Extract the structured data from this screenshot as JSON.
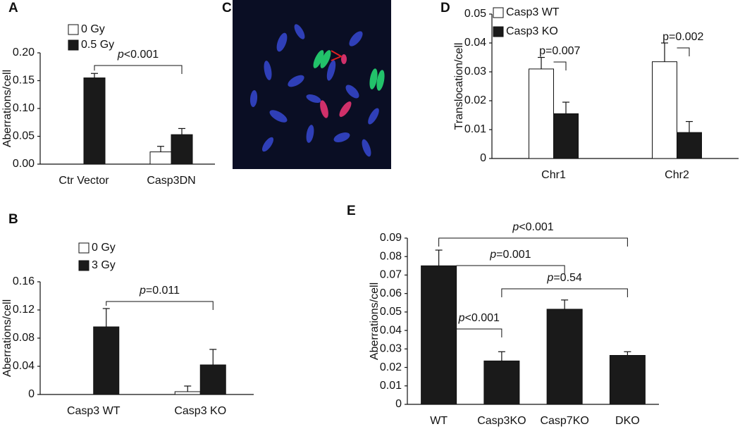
{
  "chart_data": [
    {
      "type": "bar",
      "label": "A",
      "ylabel": "Aberrations/cell",
      "categories": [
        "Ctr Vector",
        "Casp3DN"
      ],
      "series": [
        {
          "name": "0 Gy",
          "color": "#ffffff",
          "values": [
            null,
            0.022
          ],
          "errors": [
            null,
            0.01
          ]
        },
        {
          "name": "0.5 Gy",
          "color": "#1a1a1a",
          "values": [
            0.155,
            0.053
          ],
          "errors": [
            0.008,
            0.011
          ]
        }
      ],
      "ylim": [
        0,
        0.2
      ],
      "yticks": [
        {
          "value": 0,
          "label": "0.00"
        },
        {
          "value": 0.05,
          "label": "0.05"
        },
        {
          "value": 0.1,
          "label": "0.10"
        },
        {
          "value": 0.15,
          "label": "0.15"
        },
        {
          "value": 0.2,
          "label": "0.20"
        }
      ],
      "grid": false,
      "legend": "upper left",
      "annotations": [
        "p<0.001"
      ]
    },
    {
      "type": "bar",
      "label": "B",
      "ylabel": "Aberrations/cell",
      "categories": [
        "Casp3 WT",
        "Casp3 KO"
      ],
      "series": [
        {
          "name": "0 Gy",
          "color": "#ffffff",
          "values": [
            null,
            0.004
          ],
          "errors": [
            null,
            0.008
          ]
        },
        {
          "name": "3 Gy",
          "color": "#1a1a1a",
          "values": [
            0.096,
            0.042
          ],
          "errors": [
            0.026,
            0.022
          ]
        }
      ],
      "ylim": [
        0,
        0.16
      ],
      "yticks": [
        0,
        0.04,
        0.08,
        0.12,
        0.16
      ],
      "grid": false,
      "legend": "upper left",
      "annotations": [
        "p=0.011"
      ]
    },
    {
      "type": "bar",
      "label": "D",
      "ylabel": "Translocation/cell",
      "categories": [
        "Chr1",
        "Chr2"
      ],
      "series": [
        {
          "name": "Casp3 WT",
          "color": "#ffffff",
          "values": [
            0.031,
            0.0335
          ],
          "errors": [
            0.004,
            0.0065
          ]
        },
        {
          "name": "Casp3 KO",
          "color": "#1a1a1a",
          "values": [
            0.0155,
            0.009
          ],
          "errors": [
            0.004,
            0.0038
          ]
        }
      ],
      "ylim": [
        0,
        0.05
      ],
      "yticks": [
        0,
        0.01,
        0.02,
        0.03,
        0.04,
        0.05
      ],
      "grid": false,
      "legend": "upper left",
      "annotations": [
        "p=0.007",
        "p=0.002"
      ]
    },
    {
      "type": "bar",
      "label": "E",
      "ylabel": "Aberrations/cell",
      "categories": [
        "WT",
        "Casp3KO",
        "Casp7KO",
        "DKO"
      ],
      "series": [
        {
          "color": "#1a1a1a",
          "values": [
            0.075,
            0.0235,
            0.0515,
            0.0265
          ],
          "errors": [
            0.0085,
            0.005,
            0.005,
            0.002
          ]
        }
      ],
      "ylim": [
        0,
        0.09
      ],
      "yticks": [
        0,
        0.01,
        0.02,
        0.03,
        0.04,
        0.05,
        0.06,
        0.07,
        0.08,
        0.09
      ],
      "grid": false,
      "annotations": [
        "p<0.001",
        "p=0.001",
        "p=0.54",
        "p<0.001"
      ]
    }
  ],
  "image_panel": {
    "label": "C"
  }
}
